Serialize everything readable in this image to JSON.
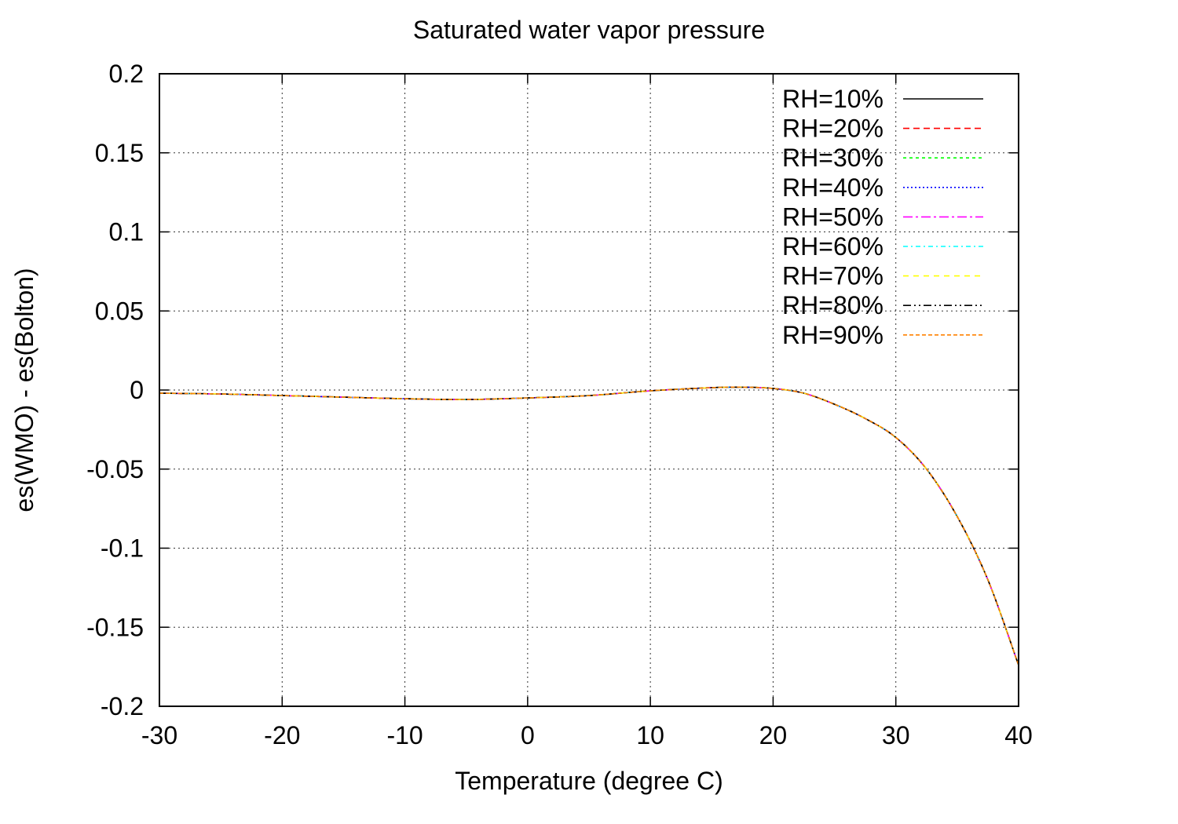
{
  "chart_data": {
    "type": "line",
    "title": "Saturated water vapor pressure",
    "xlabel": "Temperature (degree C)",
    "ylabel": "es(WMO) - es(Bolton)",
    "xlim": [
      -30,
      40
    ],
    "ylim": [
      -0.2,
      0.2
    ],
    "xticks": [
      "-30",
      "-20",
      "-10",
      "0",
      "10",
      "20",
      "30",
      "40"
    ],
    "yticks": [
      "0.2",
      "0.15",
      "0.1",
      "0.05",
      "0",
      "-0.05",
      "-0.1",
      "-0.15",
      "-0.2"
    ],
    "grid": true,
    "legend_position": "top-right",
    "x": [
      -30,
      -25,
      -20,
      -15,
      -10,
      -5,
      0,
      5,
      10,
      15,
      17.5,
      20,
      22.5,
      25,
      27.5,
      30,
      32.5,
      35,
      37.5,
      40
    ],
    "series": [
      {
        "name": "RH=10%",
        "color": "#000000",
        "dash": "",
        "values": [
          -0.002,
          -0.0025,
          -0.0035,
          -0.0045,
          -0.0055,
          -0.006,
          -0.005,
          -0.0035,
          -0.0005,
          0.0015,
          0.0018,
          0.001,
          -0.002,
          -0.009,
          -0.018,
          -0.03,
          -0.05,
          -0.08,
          -0.12,
          -0.174
        ]
      },
      {
        "name": "RH=20%",
        "color": "#ff0000",
        "dash": "8 5",
        "values": [
          -0.002,
          -0.0025,
          -0.0035,
          -0.0045,
          -0.0055,
          -0.006,
          -0.005,
          -0.0035,
          -0.0005,
          0.0015,
          0.0018,
          0.001,
          -0.002,
          -0.009,
          -0.018,
          -0.03,
          -0.05,
          -0.08,
          -0.12,
          -0.174
        ]
      },
      {
        "name": "RH=30%",
        "color": "#00ff00",
        "dash": "4 4",
        "values": [
          -0.002,
          -0.0025,
          -0.0035,
          -0.0045,
          -0.0055,
          -0.006,
          -0.005,
          -0.0035,
          -0.0005,
          0.0015,
          0.0018,
          0.001,
          -0.002,
          -0.009,
          -0.018,
          -0.03,
          -0.05,
          -0.08,
          -0.12,
          -0.174
        ]
      },
      {
        "name": "RH=40%",
        "color": "#0000ff",
        "dash": "2 3",
        "values": [
          -0.002,
          -0.0025,
          -0.0035,
          -0.0045,
          -0.0055,
          -0.006,
          -0.005,
          -0.0035,
          -0.0005,
          0.0015,
          0.0018,
          0.001,
          -0.002,
          -0.009,
          -0.018,
          -0.03,
          -0.05,
          -0.08,
          -0.12,
          -0.174
        ]
      },
      {
        "name": "RH=50%",
        "color": "#ff00ff",
        "dash": "12 4 3 4",
        "values": [
          -0.002,
          -0.0025,
          -0.0035,
          -0.0045,
          -0.0055,
          -0.006,
          -0.005,
          -0.0035,
          -0.0005,
          0.0015,
          0.0018,
          0.001,
          -0.002,
          -0.009,
          -0.018,
          -0.03,
          -0.05,
          -0.08,
          -0.12,
          -0.174
        ]
      },
      {
        "name": "RH=60%",
        "color": "#00ffff",
        "dash": "6 4 2 4",
        "values": [
          -0.002,
          -0.0025,
          -0.0035,
          -0.0045,
          -0.0055,
          -0.006,
          -0.005,
          -0.0035,
          -0.0005,
          0.0015,
          0.0018,
          0.001,
          -0.002,
          -0.009,
          -0.018,
          -0.03,
          -0.05,
          -0.08,
          -0.12,
          -0.174
        ]
      },
      {
        "name": "RH=70%",
        "color": "#ffff00",
        "dash": "7 6",
        "values": [
          -0.002,
          -0.0025,
          -0.0035,
          -0.0045,
          -0.0055,
          -0.006,
          -0.005,
          -0.0035,
          -0.0005,
          0.0015,
          0.0018,
          0.001,
          -0.002,
          -0.009,
          -0.018,
          -0.03,
          -0.05,
          -0.08,
          -0.12,
          -0.174
        ]
      },
      {
        "name": "RH=80%",
        "color": "#000000",
        "dash": "10 4 2 4 2 4",
        "values": [
          -0.002,
          -0.0025,
          -0.0035,
          -0.0045,
          -0.0055,
          -0.006,
          -0.005,
          -0.0035,
          -0.0005,
          0.0015,
          0.0018,
          0.001,
          -0.002,
          -0.009,
          -0.018,
          -0.03,
          -0.05,
          -0.08,
          -0.12,
          -0.174
        ]
      },
      {
        "name": "RH=90%",
        "color": "#ff8000",
        "dash": "5 3",
        "values": [
          -0.002,
          -0.0025,
          -0.0035,
          -0.0045,
          -0.0055,
          -0.006,
          -0.005,
          -0.0035,
          -0.0005,
          0.0015,
          0.0018,
          0.001,
          -0.002,
          -0.009,
          -0.018,
          -0.03,
          -0.05,
          -0.08,
          -0.12,
          -0.174
        ]
      }
    ]
  }
}
